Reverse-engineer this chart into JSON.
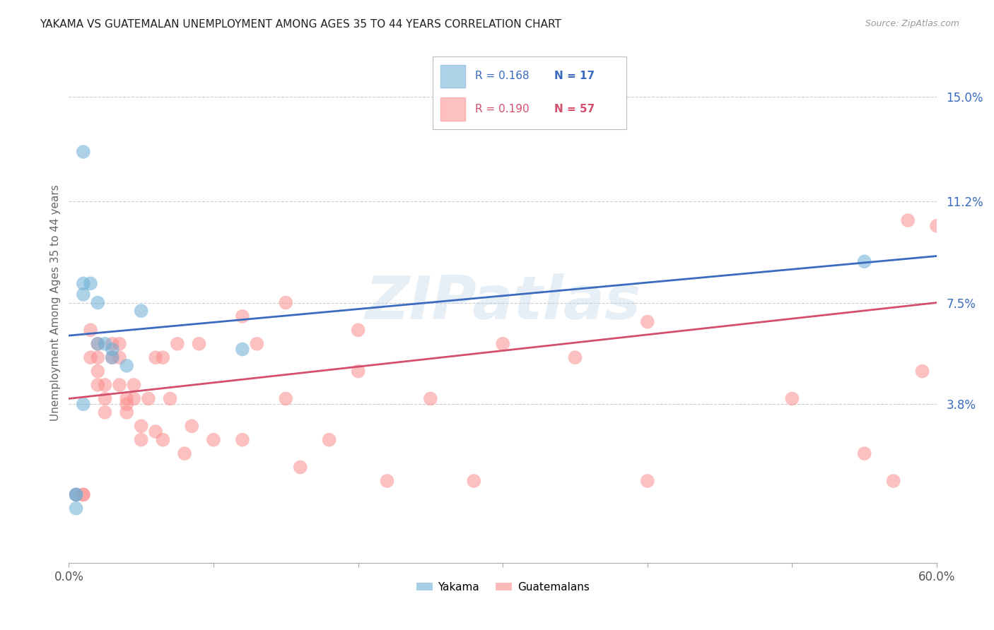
{
  "title": "YAKAMA VS GUATEMALAN UNEMPLOYMENT AMONG AGES 35 TO 44 YEARS CORRELATION CHART",
  "source": "Source: ZipAtlas.com",
  "ylabel": "Unemployment Among Ages 35 to 44 years",
  "xlim": [
    0.0,
    0.6
  ],
  "ylim": [
    -0.02,
    0.17
  ],
  "ytick_labels_right": [
    "15.0%",
    "11.2%",
    "7.5%",
    "3.8%"
  ],
  "ytick_vals_right": [
    0.15,
    0.112,
    0.075,
    0.038
  ],
  "legend_r1": "R = 0.168",
  "legend_n1": "N = 17",
  "legend_r2": "R = 0.190",
  "legend_n2": "N = 57",
  "yakama_color": "#6baed6",
  "guatemalan_color": "#fc8d8d",
  "line_blue": "#3a6bbf",
  "line_pink": "#d44f6e",
  "background_color": "#ffffff",
  "grid_color": "#cccccc",
  "watermark": "ZIPatlas",
  "blue_line_start": 0.063,
  "blue_line_end": 0.092,
  "pink_line_start": 0.04,
  "pink_line_end": 0.075,
  "yakama_x": [
    0.005,
    0.01,
    0.01,
    0.015,
    0.02,
    0.02,
    0.025,
    0.03,
    0.03,
    0.04,
    0.05,
    0.01,
    0.55,
    0.12,
    0.005,
    0.005,
    0.01
  ],
  "yakama_y": [
    0.005,
    0.082,
    0.078,
    0.082,
    0.075,
    0.06,
    0.06,
    0.058,
    0.055,
    0.052,
    0.072,
    0.038,
    0.09,
    0.058,
    0.005,
    0.0,
    0.13
  ],
  "guatemalan_x": [
    0.005,
    0.01,
    0.01,
    0.015,
    0.015,
    0.02,
    0.02,
    0.02,
    0.02,
    0.025,
    0.025,
    0.025,
    0.03,
    0.03,
    0.035,
    0.035,
    0.035,
    0.04,
    0.04,
    0.04,
    0.045,
    0.045,
    0.05,
    0.05,
    0.055,
    0.06,
    0.06,
    0.065,
    0.065,
    0.07,
    0.075,
    0.08,
    0.085,
    0.09,
    0.1,
    0.12,
    0.12,
    0.13,
    0.15,
    0.15,
    0.16,
    0.18,
    0.2,
    0.2,
    0.22,
    0.25,
    0.28,
    0.3,
    0.35,
    0.4,
    0.4,
    0.5,
    0.55,
    0.57,
    0.58,
    0.59,
    0.6
  ],
  "guatemalan_y": [
    0.005,
    0.005,
    0.005,
    0.065,
    0.055,
    0.06,
    0.055,
    0.05,
    0.045,
    0.045,
    0.04,
    0.035,
    0.06,
    0.055,
    0.06,
    0.055,
    0.045,
    0.04,
    0.038,
    0.035,
    0.045,
    0.04,
    0.03,
    0.025,
    0.04,
    0.055,
    0.028,
    0.025,
    0.055,
    0.04,
    0.06,
    0.02,
    0.03,
    0.06,
    0.025,
    0.07,
    0.025,
    0.06,
    0.04,
    0.075,
    0.015,
    0.025,
    0.05,
    0.065,
    0.01,
    0.04,
    0.01,
    0.06,
    0.055,
    0.068,
    0.01,
    0.04,
    0.02,
    0.01,
    0.105,
    0.05,
    0.103
  ]
}
